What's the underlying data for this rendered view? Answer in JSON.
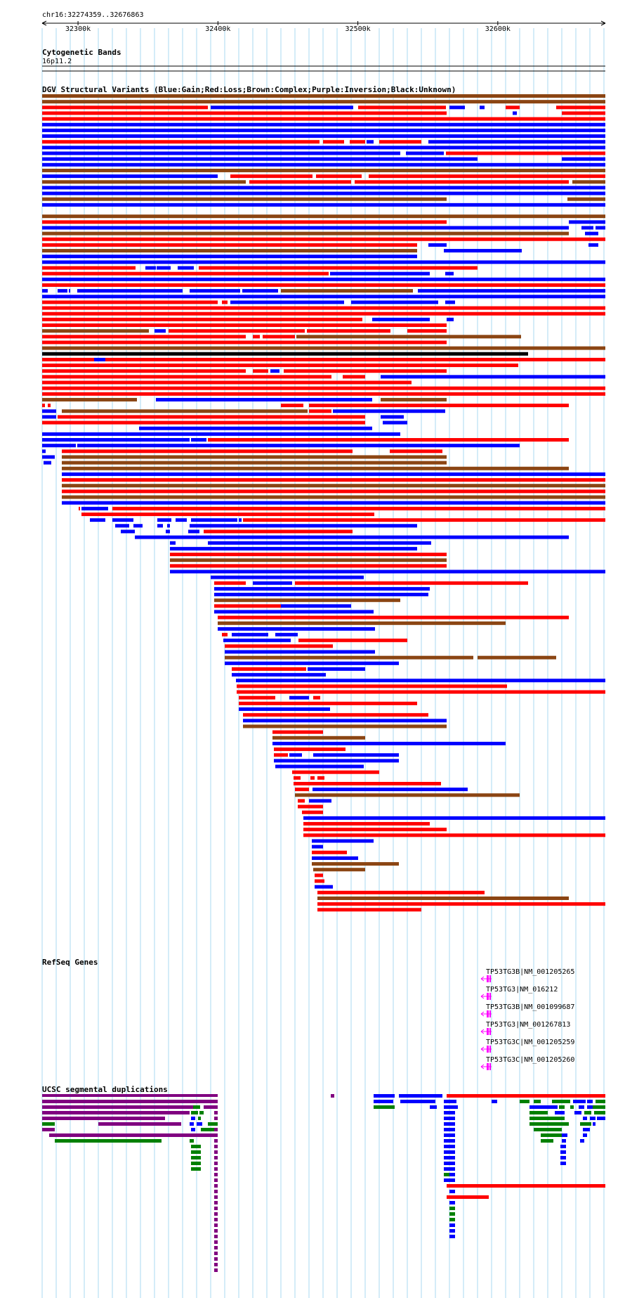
{
  "ruler": {
    "location": "chr16:32274359..32676863",
    "ticks": [
      {
        "pos": 32300000,
        "label": "32300k"
      },
      {
        "pos": 32400000,
        "label": "32400k"
      },
      {
        "pos": 32500000,
        "label": "32500k"
      },
      {
        "pos": 32600000,
        "label": "32600k"
      }
    ]
  },
  "cytobands": {
    "title": "Cytogenetic Bands",
    "band": "16p11.2"
  },
  "dgv": {
    "title": "DGV Structural Variants (Blue:Gain;Red:Loss;Brown:Complex;Purple:Inversion;Black:Unknown)"
  },
  "refseq": {
    "title": "RefSeq Genes",
    "genes": [
      {
        "name": "TP53TG3B|NM_001205265"
      },
      {
        "name": "TP53TG3|NM_016212"
      },
      {
        "name": "TP53TG3B|NM_001099687"
      },
      {
        "name": "TP53TG3|NM_001267813"
      },
      {
        "name": "TP53TG3C|NM_001205259"
      },
      {
        "name": "TP53TG3C|NM_001205260"
      }
    ]
  },
  "segdups": {
    "title": "UCSC segmental duplications"
  },
  "colors": {
    "gain": "#0000ff",
    "loss": "#ff0000",
    "complex": "#8b4513",
    "inversion": "#800080",
    "unknown": "#000000",
    "grid": "#a8d8f0",
    "gene": "#ff00ff",
    "segdup_green": "#008000"
  }
}
